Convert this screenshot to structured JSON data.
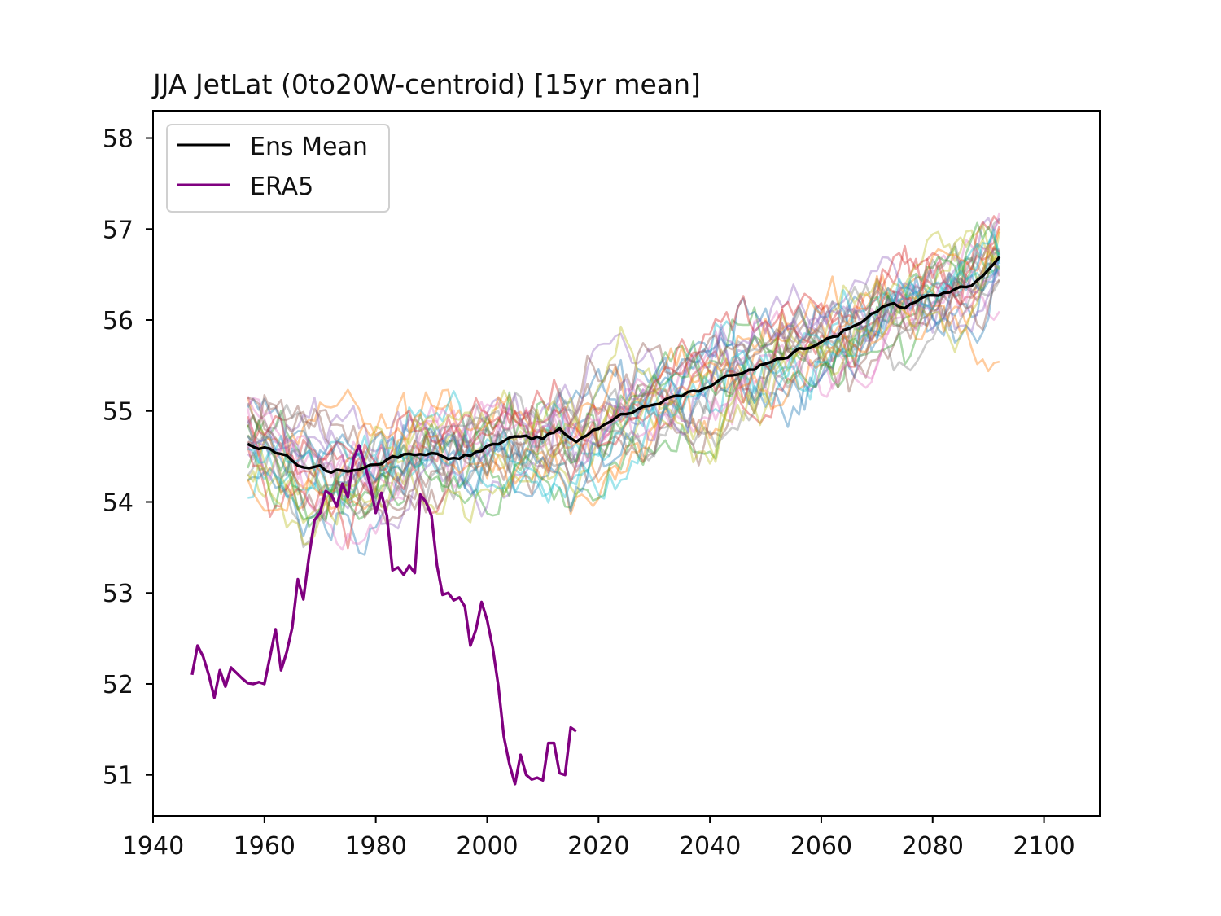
{
  "chart_data": {
    "type": "line",
    "title": "JJA JetLat (0to20W-centroid) [15yr mean]",
    "xlabel": "",
    "ylabel": "",
    "xlim": [
      1940,
      2110
    ],
    "ylim": [
      50.55,
      58.3
    ],
    "xticks": [
      1940,
      1960,
      1980,
      2000,
      2020,
      2040,
      2060,
      2080,
      2100
    ],
    "yticks": [
      51,
      52,
      53,
      54,
      55,
      56,
      57,
      58
    ],
    "legend": {
      "location": "upper-left",
      "entries": [
        "Ens Mean",
        "ERA5"
      ]
    },
    "ensemble": {
      "members": 30,
      "x_start": 1957,
      "x_end": 2092,
      "opacity": 0.4,
      "colors": [
        "#1f77b4",
        "#ff7f0e",
        "#2ca02c",
        "#d62728",
        "#9467bd",
        "#8c564b",
        "#e377c2",
        "#7f7f7f",
        "#bcbd22",
        "#17becf"
      ]
    },
    "series": [
      {
        "name": "Ens Mean",
        "color": "#000000",
        "anchors_x": [
          1957,
          1962,
          1966,
          1970,
          1972,
          1976,
          1980,
          1984,
          1988,
          1993,
          1997,
          2000,
          2004,
          2010,
          2013,
          2016,
          2018,
          2021,
          2024,
          2028,
          2032,
          2036,
          2040,
          2044,
          2048,
          2052,
          2056,
          2060,
          2064,
          2068,
          2072,
          2075,
          2078,
          2082,
          2086,
          2088,
          2090,
          2092
        ],
        "anchors_y": [
          54.65,
          54.55,
          54.42,
          54.38,
          54.33,
          54.37,
          54.42,
          54.5,
          54.55,
          54.5,
          54.52,
          54.6,
          54.68,
          54.7,
          54.78,
          54.67,
          54.75,
          54.85,
          54.98,
          55.02,
          55.12,
          55.2,
          55.28,
          55.4,
          55.48,
          55.55,
          55.68,
          55.75,
          55.88,
          56.02,
          56.18,
          56.15,
          56.25,
          56.3,
          56.35,
          56.42,
          56.58,
          56.7
        ]
      },
      {
        "name": "ERA5",
        "color": "#800080",
        "x": [
          1947,
          1948,
          1949,
          1950,
          1951,
          1952,
          1953,
          1954,
          1955,
          1956,
          1957,
          1958,
          1959,
          1960,
          1961,
          1962,
          1963,
          1964,
          1965,
          1966,
          1967,
          1968,
          1969,
          1970,
          1971,
          1972,
          1973,
          1974,
          1975,
          1976,
          1977,
          1978,
          1979,
          1980,
          1981,
          1982,
          1983,
          1984,
          1985,
          1986,
          1987,
          1988,
          1989,
          1990,
          1991,
          1992,
          1993,
          1994,
          1995,
          1996,
          1997,
          1998,
          1999,
          2000,
          2001,
          2002,
          2003,
          2004,
          2005,
          2006,
          2007,
          2008,
          2009,
          2010,
          2011,
          2012,
          2013,
          2014,
          2015,
          2016
        ],
        "y": [
          52.1,
          52.42,
          52.3,
          52.1,
          51.85,
          52.15,
          51.97,
          52.18,
          52.12,
          52.06,
          52.01,
          52.0,
          52.02,
          52.0,
          52.3,
          52.6,
          52.15,
          52.35,
          52.62,
          53.15,
          52.93,
          53.4,
          53.8,
          53.88,
          54.12,
          54.08,
          53.95,
          54.2,
          54.05,
          54.48,
          54.62,
          54.42,
          54.18,
          53.88,
          54.1,
          53.85,
          53.25,
          53.28,
          53.2,
          53.3,
          53.22,
          54.08,
          54.0,
          53.85,
          53.3,
          52.98,
          53.0,
          52.92,
          52.95,
          52.85,
          52.42,
          52.6,
          52.9,
          52.7,
          52.4,
          51.98,
          51.42,
          51.12,
          50.9,
          51.22,
          51.0,
          50.95,
          50.97,
          50.94,
          51.35,
          51.35,
          51.02,
          51.0,
          51.52,
          51.48
        ]
      }
    ]
  }
}
